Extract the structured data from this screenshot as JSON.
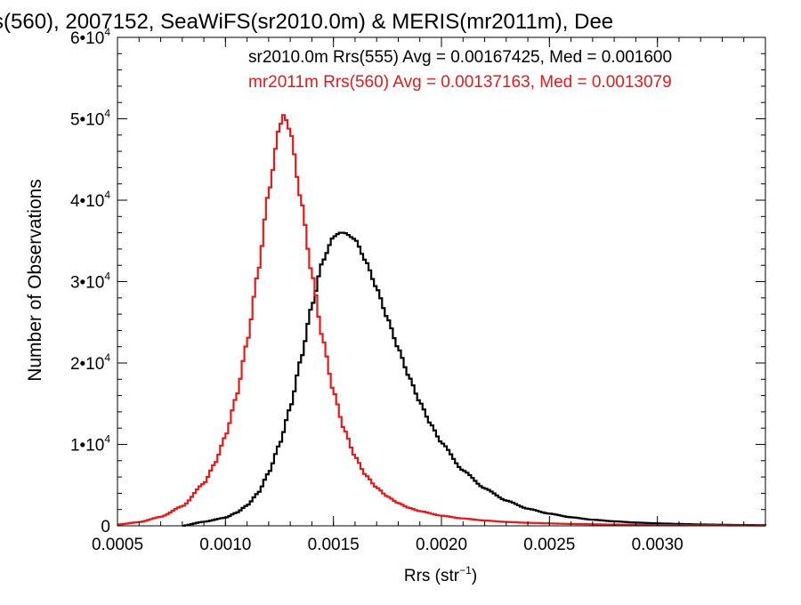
{
  "chart_data": {
    "type": "line",
    "title": "s(560), 2007152, SeaWiFS(sr2010.0m) & MERIS(mr2011m), Dee",
    "xlabel": "Rrs (str",
    "xlabel_sup": "−1",
    "xlabel_close": ")",
    "ylabel": "Number of Observations",
    "xlim": [
      0.0005,
      0.0035
    ],
    "ylim": [
      0,
      60000
    ],
    "x_ticks": [
      {
        "value": 0.0005,
        "label": "0.0005"
      },
      {
        "value": 0.001,
        "label": "0.0010"
      },
      {
        "value": 0.0015,
        "label": "0.0015"
      },
      {
        "value": 0.002,
        "label": "0.0020"
      },
      {
        "value": 0.0025,
        "label": "0.0025"
      },
      {
        "value": 0.003,
        "label": "0.0030"
      }
    ],
    "y_ticks": [
      {
        "value": 0,
        "label": "0",
        "mantissa": "",
        "exponent": ""
      },
      {
        "value": 10000,
        "label": "",
        "mantissa": "1•10",
        "exponent": "4"
      },
      {
        "value": 20000,
        "label": "",
        "mantissa": "2•10",
        "exponent": "4"
      },
      {
        "value": 30000,
        "label": "",
        "mantissa": "3•10",
        "exponent": "4"
      },
      {
        "value": 40000,
        "label": "",
        "mantissa": "4•10",
        "exponent": "4"
      },
      {
        "value": 50000,
        "label": "",
        "mantissa": "5•10",
        "exponent": "4"
      },
      {
        "value": 60000,
        "label": "",
        "mantissa": "6•10",
        "exponent": "4"
      }
    ],
    "legend_placement": "top-right",
    "grid": false,
    "series": [
      {
        "name": "sr2010.0m Rrs(555) Avg = 0.00167425, Med = 0.001600",
        "color": "#000000",
        "x": [
          0.0008,
          0.0009,
          0.001,
          0.00105,
          0.0011,
          0.00115,
          0.0012,
          0.00125,
          0.0013,
          0.00135,
          0.0014,
          0.00145,
          0.0015,
          0.00153,
          0.00155,
          0.0016,
          0.00165,
          0.0017,
          0.00175,
          0.0018,
          0.00185,
          0.0019,
          0.00195,
          0.002,
          0.0021,
          0.0022,
          0.0023,
          0.0024,
          0.0025,
          0.0026,
          0.0027,
          0.0028,
          0.0029,
          0.003,
          0.0031,
          0.0032,
          0.0033,
          0.0034,
          0.0035
        ],
        "y": [
          0,
          500,
          1000,
          1600,
          2500,
          4000,
          6500,
          10000,
          14500,
          20500,
          27000,
          32500,
          35500,
          36000,
          36000,
          35200,
          32500,
          29200,
          25500,
          21800,
          18300,
          15200,
          12500,
          10200,
          6800,
          4600,
          3100,
          2100,
          1500,
          1050,
          750,
          550,
          400,
          300,
          230,
          170,
          130,
          100,
          80
        ]
      },
      {
        "name": "mr2011m Rrs(560) Avg = 0.00137163, Med = 0.0013079",
        "color": "#e41a1c",
        "x": [
          0.0005,
          0.0006,
          0.0007,
          0.0008,
          0.0009,
          0.00095,
          0.001,
          0.00105,
          0.0011,
          0.00115,
          0.0012,
          0.00125,
          0.00127,
          0.0013,
          0.00135,
          0.0014,
          0.00145,
          0.0015,
          0.00155,
          0.0016,
          0.00165,
          0.0017,
          0.00175,
          0.0018,
          0.00185,
          0.0019,
          0.002,
          0.0021,
          0.0022,
          0.0023,
          0.0024,
          0.0026,
          0.0028,
          0.003,
          0.0032,
          0.0035
        ],
        "y": [
          150,
          450,
          1100,
          2400,
          5200,
          7600,
          11000,
          15800,
          22500,
          31000,
          41000,
          49000,
          50500,
          48500,
          40000,
          31000,
          23000,
          16500,
          11800,
          8500,
          6200,
          4700,
          3600,
          2800,
          2200,
          1800,
          1250,
          900,
          650,
          480,
          370,
          230,
          150,
          100,
          70,
          40
        ]
      }
    ]
  }
}
